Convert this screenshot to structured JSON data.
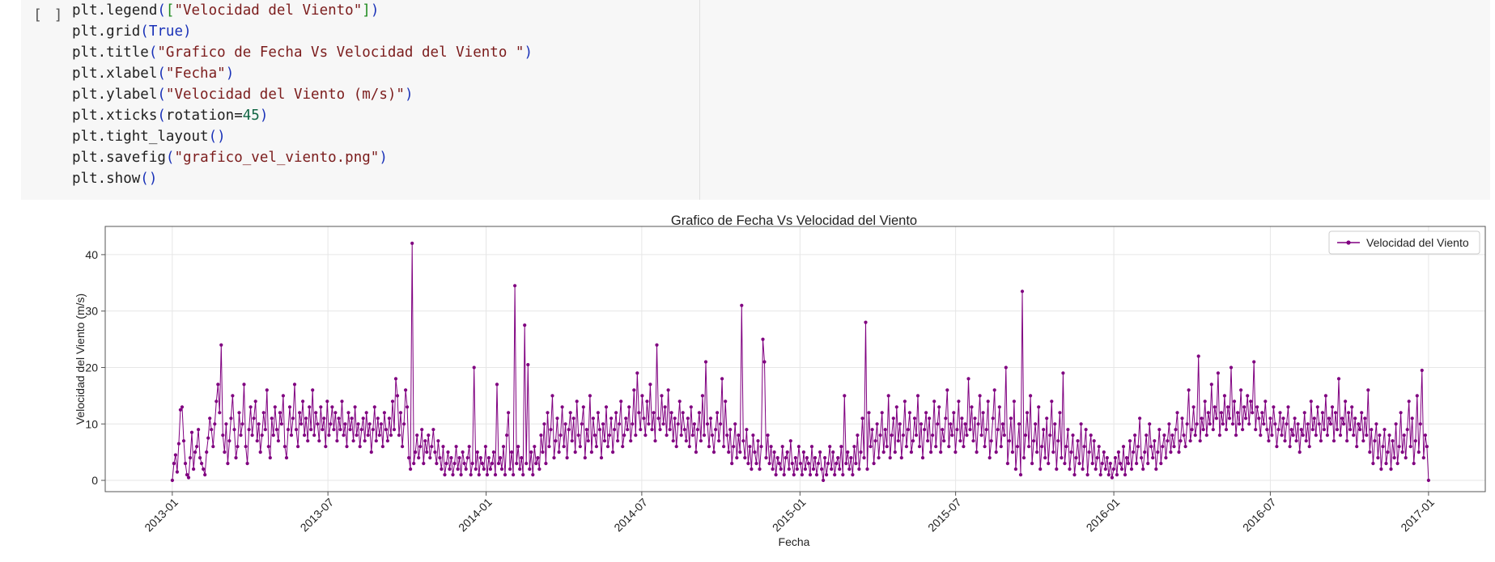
{
  "cell": {
    "run_indicator": "[ ]",
    "code": {
      "legend_label": "Velocidad del Viento",
      "title_arg": "Grafico de Fecha Vs Velocidad del Viento ",
      "xlabel_arg": "Fecha",
      "ylabel_arg": "Velocidad del Viento (m/s)",
      "rotation": "45",
      "savefig_arg": "grafico_vel_viento.png"
    }
  },
  "chart_data": {
    "type": "line",
    "title": "Grafico de Fecha Vs Velocidad del Viento",
    "xlabel": "Fecha",
    "ylabel": "Velocidad del Viento (m/s)",
    "x_start": "2013-01-01",
    "x_end": "2017-01-01",
    "xlim": [
      "2012-10-15",
      "2017-03-08"
    ],
    "ylim": [
      -2,
      45
    ],
    "xticks": [
      "2013-01",
      "2013-07",
      "2014-01",
      "2014-07",
      "2015-01",
      "2015-07",
      "2016-01",
      "2016-07",
      "2017-01"
    ],
    "yticks": [
      0,
      10,
      20,
      30,
      40
    ],
    "grid": true,
    "legend_position": "top-right",
    "tick_rotation": 45,
    "series": [
      {
        "name": "Velocidad del Viento",
        "color": "#800080",
        "marker": "circle",
        "values": [
          0,
          3,
          4.5,
          1.5,
          6.5,
          12.5,
          13,
          7,
          3,
          1,
          0.5,
          4,
          8.5,
          2,
          5,
          6,
          9,
          4,
          3,
          2,
          1,
          5,
          7.5,
          11,
          9,
          6,
          10,
          14,
          17,
          12,
          24,
          8,
          5,
          10,
          3,
          7,
          11,
          15,
          9,
          4,
          6,
          12,
          8,
          10,
          17,
          6,
          3,
          9,
          13,
          8,
          11,
          14,
          7,
          10,
          5,
          8,
          12,
          9,
          16,
          6,
          4,
          11,
          8,
          13,
          9,
          7,
          12,
          10,
          15,
          6,
          4,
          9,
          13,
          8,
          11,
          17,
          9,
          6,
          12,
          10,
          14,
          8,
          11,
          7,
          13,
          9,
          16,
          8,
          12,
          10,
          7,
          13,
          9,
          11,
          6,
          14,
          8,
          10,
          13,
          9,
          12,
          7,
          11,
          9,
          14,
          8,
          10,
          6,
          12,
          9,
          11,
          7,
          13,
          8,
          10,
          6,
          9,
          11,
          7,
          12,
          8,
          10,
          5,
          9,
          13,
          7,
          11,
          8,
          10,
          6,
          12,
          9,
          7,
          11,
          8,
          14,
          9,
          18,
          15,
          8,
          12,
          6,
          10,
          16,
          13,
          4,
          2,
          42,
          3,
          5,
          8,
          4,
          6,
          9,
          3,
          7,
          5,
          8,
          4,
          6,
          9,
          5,
          3,
          7,
          4,
          2,
          6,
          1,
          3,
          5,
          2,
          4,
          1,
          3,
          6,
          2,
          4,
          1,
          5,
          3,
          2,
          4,
          6,
          1,
          3,
          20,
          2,
          5,
          1,
          4,
          3,
          2,
          6,
          1,
          4,
          2,
          3,
          5,
          1,
          17,
          3,
          4,
          2,
          6,
          1,
          8,
          12,
          2,
          5,
          1,
          34.5,
          3,
          6,
          2,
          4,
          1,
          27.5,
          3,
          20.5,
          2,
          5,
          1,
          6,
          3,
          4,
          2,
          8,
          5,
          10,
          3,
          12,
          6,
          9,
          15,
          4,
          7,
          11,
          5,
          8,
          13,
          6,
          10,
          4,
          9,
          12,
          7,
          11,
          5,
          14,
          8,
          6,
          10,
          13,
          4,
          9,
          7,
          15,
          5,
          11,
          8,
          6,
          12,
          9,
          4,
          10,
          7,
          13,
          6,
          8,
          11,
          5,
          9,
          12,
          7,
          10,
          14,
          6,
          8,
          11,
          9,
          13,
          7,
          10,
          16,
          8,
          19,
          12,
          9,
          15,
          11,
          8,
          14,
          10,
          17,
          9,
          12,
          7,
          24,
          11,
          9,
          15,
          10,
          13,
          8,
          16,
          9,
          12,
          7,
          11,
          6,
          10,
          14,
          8,
          12,
          9,
          7,
          11,
          6,
          13,
          8,
          10,
          5,
          9,
          12,
          7,
          15,
          8,
          21,
          10,
          6,
          11,
          8,
          5,
          9,
          12,
          7,
          10,
          18,
          6,
          14,
          8,
          5,
          9,
          3,
          6,
          10,
          4,
          8,
          5,
          31,
          7,
          4,
          9,
          3,
          6,
          2,
          8,
          5,
          3,
          7,
          2,
          6,
          25,
          21,
          4,
          8,
          3,
          6,
          2,
          5,
          1,
          4,
          3,
          2,
          6,
          1,
          4,
          5,
          2,
          7,
          3,
          1,
          4,
          2,
          6,
          3,
          1,
          5,
          2,
          4,
          3,
          1,
          6,
          2,
          4,
          1,
          3,
          5,
          2,
          0,
          4,
          1,
          3,
          6,
          2,
          5,
          1,
          3,
          4,
          2,
          6,
          1,
          15,
          3,
          5,
          2,
          4,
          1,
          6,
          3,
          8,
          2,
          5,
          11,
          4,
          28,
          2,
          12,
          6,
          9,
          3,
          7,
          10,
          4,
          8,
          12,
          5,
          9,
          6,
          15,
          4,
          8,
          11,
          5,
          13,
          7,
          10,
          4,
          8,
          14,
          6,
          9,
          12,
          5,
          7,
          11,
          8,
          15,
          6,
          10,
          4,
          9,
          12,
          7,
          11,
          5,
          8,
          14,
          6,
          10,
          13,
          5,
          9,
          7,
          11,
          16,
          6,
          10,
          8,
          12,
          5,
          9,
          14,
          7,
          11,
          6,
          10,
          8,
          18,
          9,
          13,
          7,
          11,
          5,
          10,
          15,
          8,
          12,
          6,
          9,
          14,
          4,
          7,
          11,
          16,
          5,
          9,
          13,
          6,
          10,
          8,
          20,
          3,
          7,
          11,
          5,
          14,
          2,
          6,
          10,
          1,
          33.5,
          4,
          8,
          12,
          6,
          15,
          3,
          7,
          10,
          5,
          13,
          2,
          6,
          9,
          4,
          11,
          3,
          8,
          14,
          5,
          10,
          2,
          7,
          12,
          4,
          19,
          3,
          6,
          9,
          2,
          5,
          8,
          1,
          4,
          7,
          3,
          10,
          2,
          6,
          9,
          1,
          5,
          8,
          3,
          7,
          2,
          4,
          6,
          1,
          3,
          5,
          2,
          4,
          1,
          3,
          0.5,
          2,
          4,
          1,
          5,
          3,
          2,
          6,
          1,
          4,
          3,
          7,
          2,
          5,
          8,
          3,
          6,
          11,
          4,
          2,
          5,
          8,
          3,
          10,
          6,
          4,
          7,
          2,
          5,
          9,
          3,
          6,
          8,
          4,
          7,
          10,
          5,
          8,
          6,
          9,
          12,
          5,
          7,
          11,
          8,
          6,
          10,
          16,
          7,
          9,
          13,
          8,
          10,
          22,
          7,
          11,
          9,
          14,
          8,
          12,
          10,
          17,
          9,
          13,
          11,
          19,
          8,
          12,
          10,
          15,
          9,
          13,
          11,
          20,
          10,
          14,
          8,
          12,
          10,
          16,
          9,
          13,
          11,
          15,
          10,
          14,
          12,
          21,
          9,
          13,
          11,
          8,
          12,
          10,
          14,
          9,
          7,
          11,
          8,
          13,
          10,
          6,
          9,
          12,
          8,
          11,
          7,
          10,
          13,
          6,
          9,
          8,
          11,
          7,
          10,
          5,
          9,
          8,
          12,
          7,
          10,
          6,
          14,
          9,
          11,
          8,
          13,
          10,
          7,
          12,
          9,
          15,
          8,
          11,
          10,
          13,
          7,
          12,
          9,
          18,
          8,
          11,
          10,
          14,
          7,
          12,
          9,
          13,
          8,
          11,
          6,
          10,
          9,
          12,
          7,
          11,
          8,
          16,
          5,
          9,
          3,
          7,
          10,
          4,
          8,
          2,
          6,
          9,
          3,
          5,
          8,
          2,
          7,
          4,
          10,
          3,
          6,
          12,
          5,
          8,
          4,
          9,
          14,
          6,
          11,
          3,
          7,
          15,
          5,
          10,
          19.5,
          4,
          8,
          6,
          0
        ]
      }
    ]
  }
}
